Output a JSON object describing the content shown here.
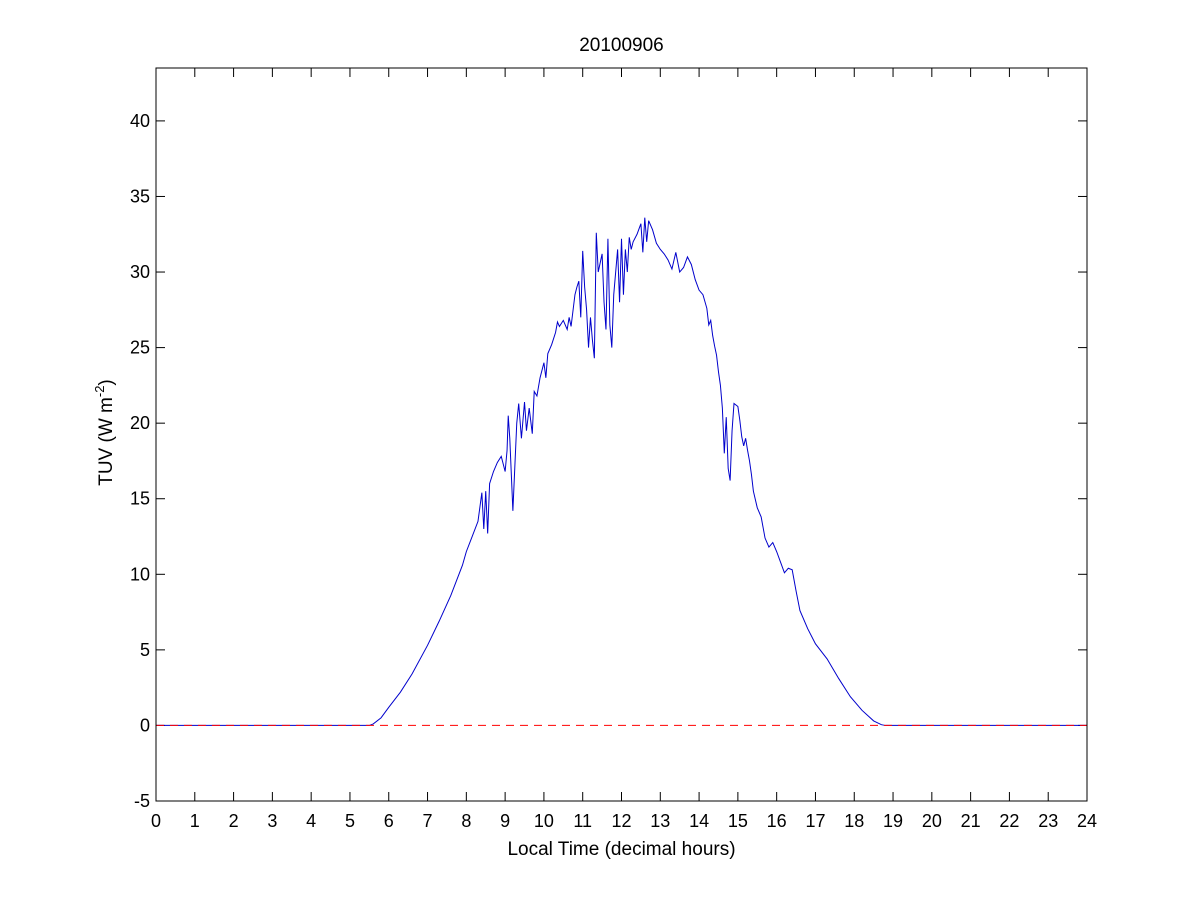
{
  "chart_data": {
    "type": "line",
    "title": "20100906",
    "xlabel": "Local Time (decimal hours)",
    "ylabel": {
      "base": "TUV (W m",
      "sup": "-2",
      "close": ")"
    },
    "xlim": [
      0,
      24
    ],
    "ylim": [
      -5,
      43.5
    ],
    "xticks": [
      0,
      1,
      2,
      3,
      4,
      5,
      6,
      7,
      8,
      9,
      10,
      11,
      12,
      13,
      14,
      15,
      16,
      17,
      18,
      19,
      20,
      21,
      22,
      23,
      24
    ],
    "yticks": [
      -5,
      0,
      5,
      10,
      15,
      20,
      25,
      30,
      35,
      40
    ],
    "grid": false,
    "series": [
      {
        "style": "solid",
        "color": "#0000cc",
        "x": [
          0,
          5.5,
          5.6,
          5.8,
          6.0,
          6.3,
          6.6,
          7.0,
          7.3,
          7.6,
          7.9,
          8.0,
          8.15,
          8.3,
          8.4,
          8.45,
          8.5,
          8.55,
          8.6,
          8.7,
          8.8,
          8.9,
          9.0,
          9.05,
          9.08,
          9.12,
          9.2,
          9.3,
          9.35,
          9.42,
          9.5,
          9.55,
          9.62,
          9.7,
          9.75,
          9.82,
          9.9,
          10.0,
          10.05,
          10.1,
          10.2,
          10.3,
          10.35,
          10.4,
          10.5,
          10.6,
          10.65,
          10.7,
          10.8,
          10.85,
          10.9,
          10.95,
          11.0,
          11.05,
          11.1,
          11.15,
          11.2,
          11.25,
          11.3,
          11.35,
          11.4,
          11.5,
          11.55,
          11.6,
          11.65,
          11.7,
          11.75,
          11.8,
          11.9,
          11.95,
          12.0,
          12.05,
          12.1,
          12.15,
          12.2,
          12.25,
          12.3,
          12.4,
          12.5,
          12.55,
          12.6,
          12.65,
          12.7,
          12.8,
          12.9,
          13.0,
          13.1,
          13.2,
          13.3,
          13.4,
          13.5,
          13.6,
          13.7,
          13.8,
          13.9,
          14.0,
          14.1,
          14.2,
          14.25,
          14.3,
          14.35,
          14.4,
          14.45,
          14.5,
          14.55,
          14.6,
          14.65,
          14.7,
          14.75,
          14.8,
          14.85,
          14.9,
          15.0,
          15.05,
          15.1,
          15.15,
          15.2,
          15.25,
          15.3,
          15.35,
          15.4,
          15.5,
          15.6,
          15.7,
          15.8,
          15.9,
          16.0,
          16.1,
          16.2,
          16.3,
          16.4,
          16.5,
          16.6,
          16.8,
          17.0,
          17.3,
          17.6,
          17.9,
          18.2,
          18.5,
          18.7,
          18.8,
          24
        ],
        "y": [
          0,
          0,
          0.1,
          0.5,
          1.2,
          2.2,
          3.4,
          5.3,
          6.9,
          8.6,
          10.6,
          11.5,
          12.5,
          13.5,
          15.4,
          13.0,
          15.5,
          12.7,
          16.0,
          16.8,
          17.4,
          17.8,
          16.8,
          18.2,
          20.5,
          19.0,
          14.2,
          20.0,
          21.3,
          19.0,
          21.4,
          19.5,
          21.0,
          19.3,
          22.1,
          21.8,
          23.0,
          24.0,
          23.0,
          24.6,
          25.2,
          26.0,
          26.7,
          26.4,
          26.8,
          26.2,
          27.0,
          26.4,
          28.5,
          29.0,
          29.4,
          27.0,
          31.4,
          29.0,
          27.5,
          25.0,
          27.0,
          25.5,
          24.3,
          32.6,
          30.0,
          31.2,
          28.0,
          26.2,
          32.2,
          26.5,
          25.0,
          28.5,
          31.5,
          28.0,
          32.2,
          28.5,
          31.5,
          30.0,
          32.3,
          31.5,
          32.0,
          32.5,
          33.2,
          31.3,
          33.6,
          32.0,
          33.4,
          32.8,
          31.9,
          31.5,
          31.2,
          30.8,
          30.2,
          31.3,
          30.0,
          30.3,
          31.0,
          30.5,
          29.5,
          28.8,
          28.5,
          27.6,
          26.5,
          26.8,
          25.8,
          25.1,
          24.5,
          23.4,
          22.5,
          21.0,
          18.0,
          20.4,
          17.0,
          16.2,
          19.5,
          21.3,
          21.1,
          20.2,
          19.1,
          18.5,
          19.0,
          18.2,
          17.5,
          16.6,
          15.5,
          14.4,
          13.8,
          12.4,
          11.8,
          12.1,
          11.5,
          10.8,
          10.1,
          10.4,
          10.3,
          8.9,
          7.6,
          6.4,
          5.4,
          4.4,
          3.1,
          1.9,
          1.0,
          0.3,
          0.05,
          0,
          0
        ]
      },
      {
        "style": "dashed",
        "color": "#ff0000",
        "x": [
          0,
          24
        ],
        "y": [
          0,
          0
        ]
      }
    ]
  }
}
